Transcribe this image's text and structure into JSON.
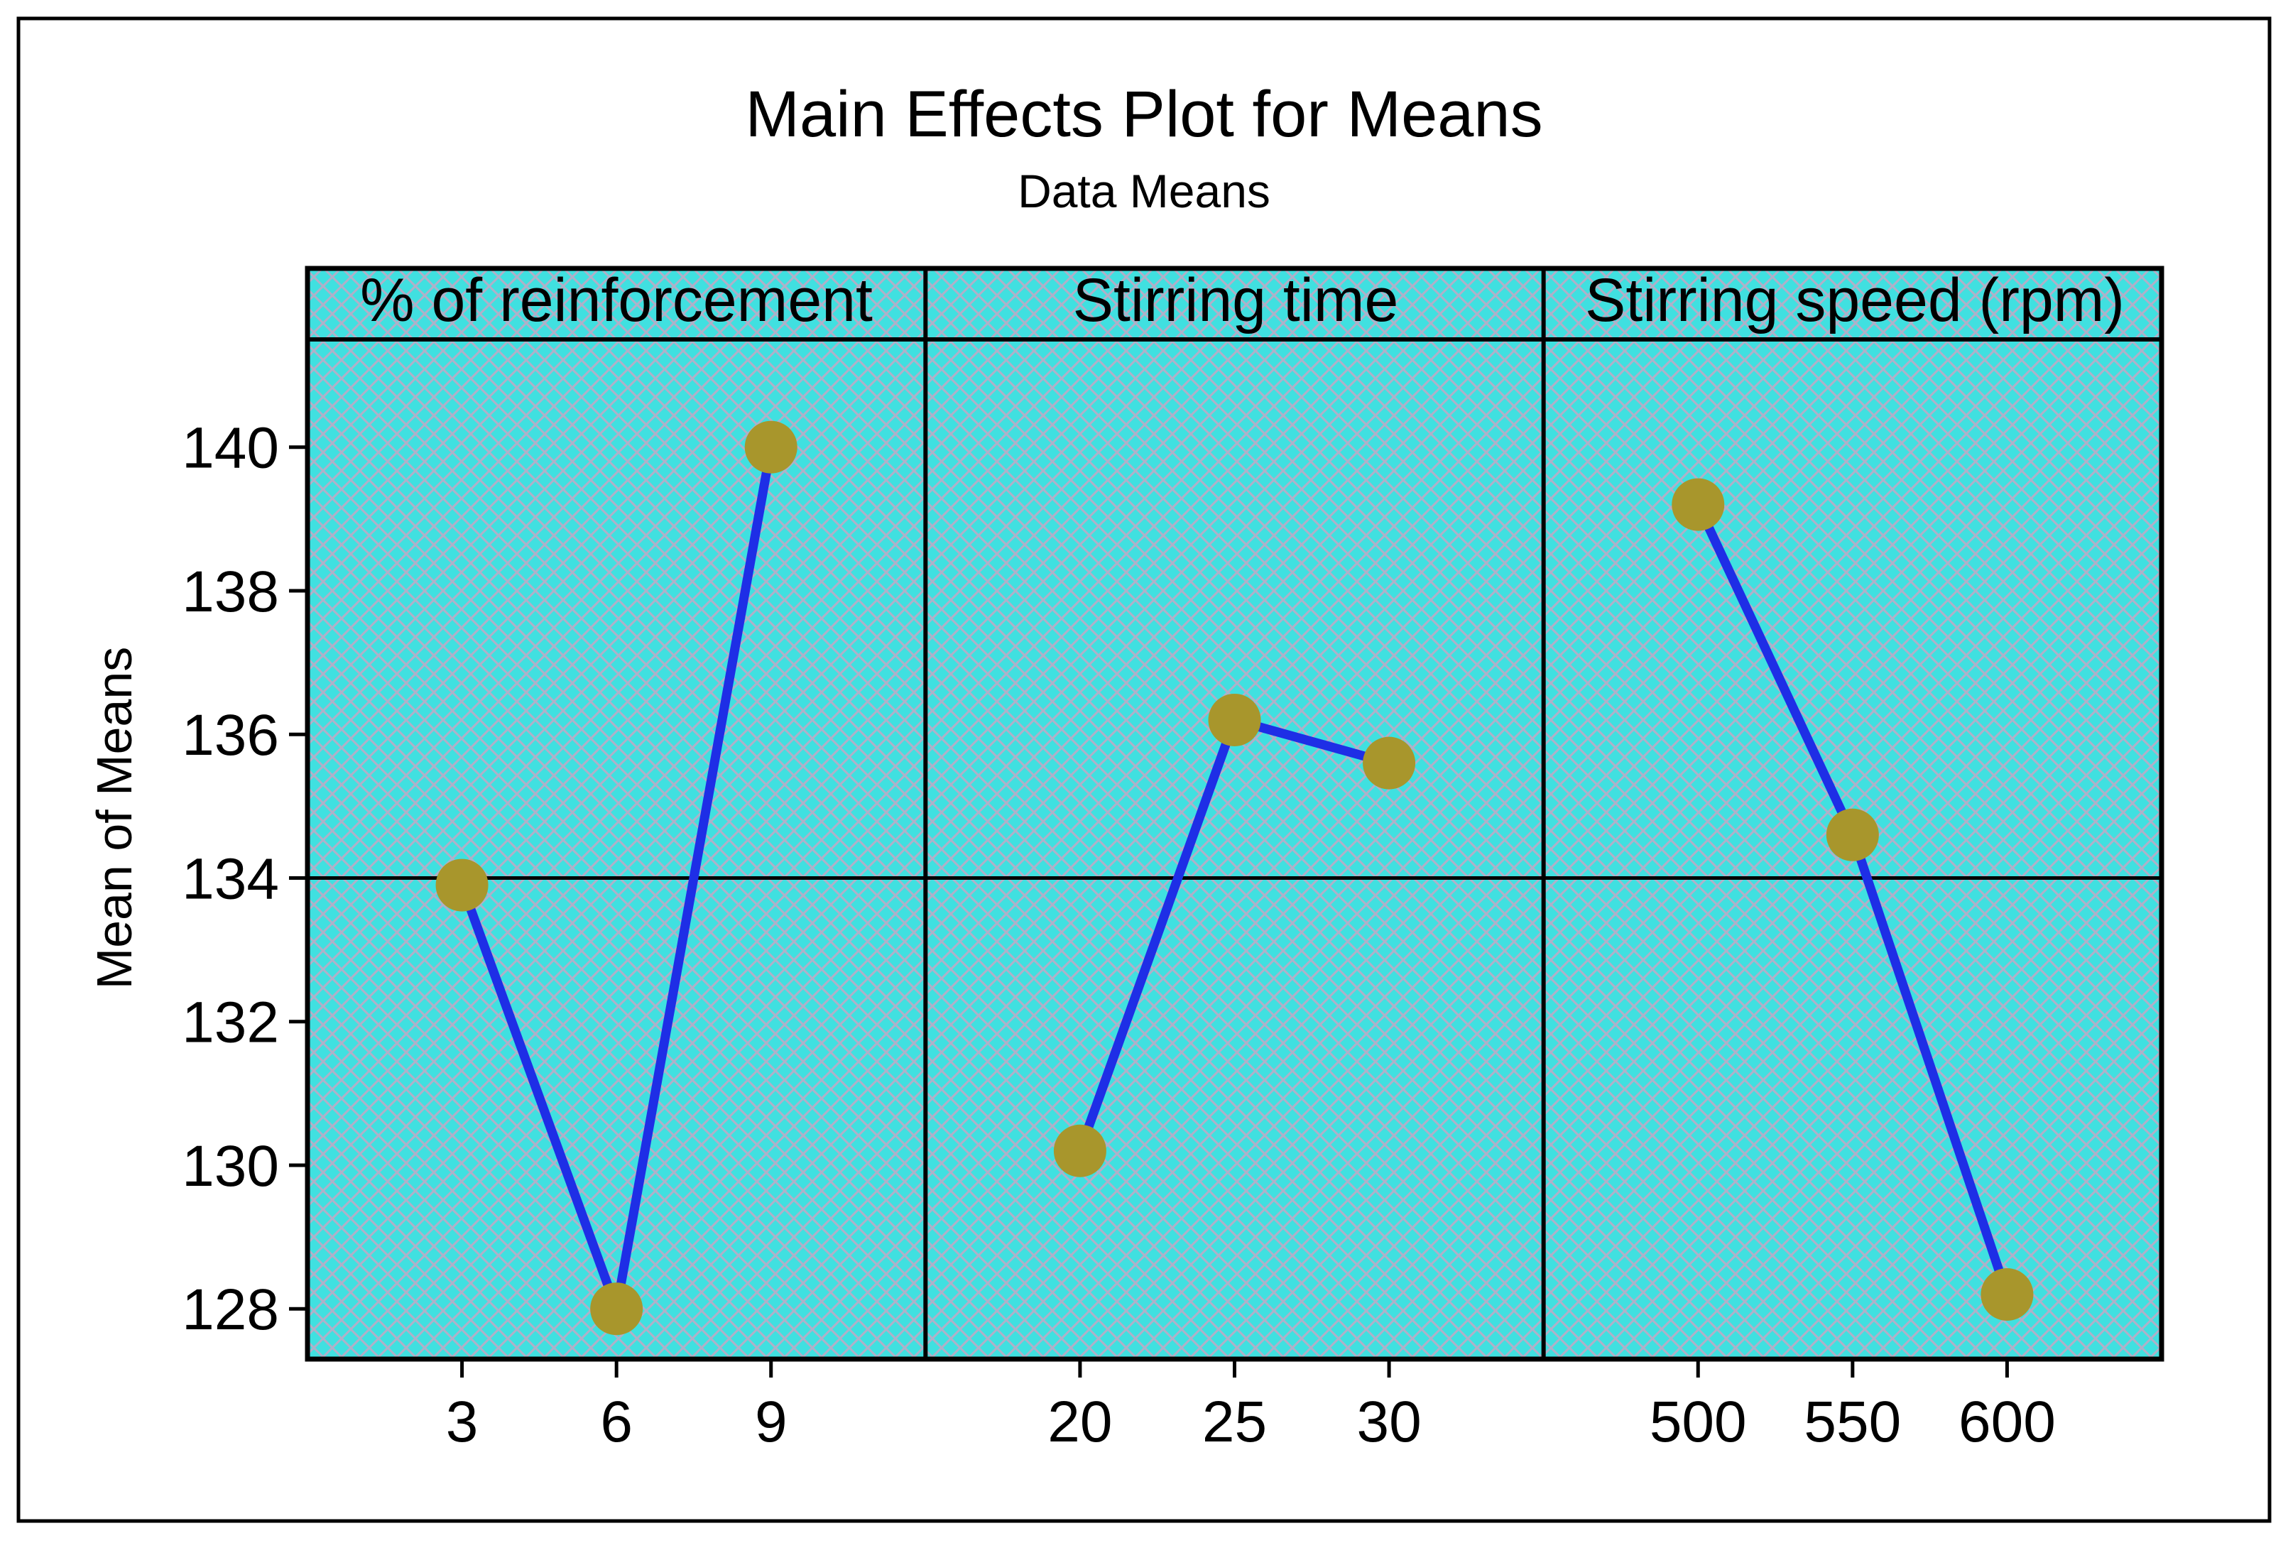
{
  "chart_data": {
    "type": "line",
    "title": "Main Effects Plot for Means",
    "subtitle": "Data Means",
    "ylabel": "Mean of Means",
    "ylim": [
      127.3,
      141.5
    ],
    "yticks": [
      128,
      130,
      132,
      134,
      136,
      138,
      140
    ],
    "reference_line": 134,
    "colors": {
      "panel_fill": "#40E0E0",
      "hatch": "#B0B0C8",
      "line": "#1E2EE6",
      "marker": "#A8962C",
      "frame": "#000000"
    },
    "panels": [
      {
        "name": "% of reinforcement",
        "categories": [
          "3",
          "6",
          "9"
        ],
        "values": [
          133.9,
          128.0,
          140.0
        ]
      },
      {
        "name": "Stirring time",
        "categories": [
          "20",
          "25",
          "30"
        ],
        "values": [
          130.2,
          136.2,
          135.6
        ]
      },
      {
        "name": "Stirring speed (rpm)",
        "categories": [
          "500",
          "550",
          "600"
        ],
        "values": [
          139.2,
          134.6,
          128.2
        ]
      }
    ]
  }
}
